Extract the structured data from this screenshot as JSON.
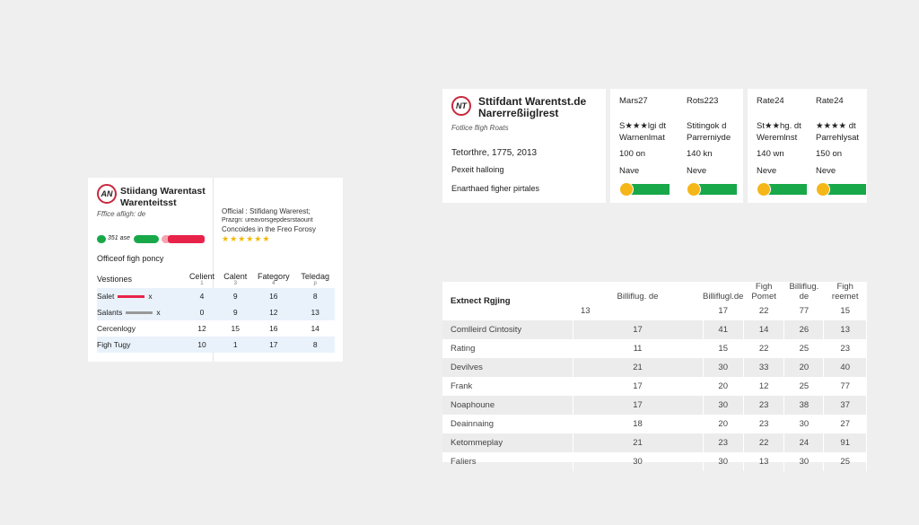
{
  "left_card": {
    "title1": "Stiidang Warentast",
    "title2": "Warenteitsst",
    "subtitle": "Fffice afligh: de",
    "pill_label": "351 ase",
    "section": "Officeof figh poncy",
    "right_title": "Official : Stifidang Warerest;",
    "right_line2": "Prazgn: ureavorsgepdesrstaount",
    "right_line3": "Concoides in the Freo Forosy",
    "stars": "★★★★★★",
    "table": {
      "headers": [
        "Vestiones",
        "Celient",
        "Calent",
        "Fategory",
        "Teledag"
      ],
      "subs": [
        "",
        "1",
        "3",
        "4",
        "p"
      ],
      "rows": [
        [
          "Salet",
          "4",
          "9",
          "16",
          "8"
        ],
        [
          "Salants",
          "0",
          "9",
          "12",
          "13"
        ],
        [
          "Cercenlogy",
          "12",
          "15",
          "16",
          "14"
        ],
        [
          "Figh Tugy",
          "10",
          "1",
          "17",
          "8"
        ]
      ]
    },
    "colors": {
      "green": "#18a84a",
      "red": "#e8234a",
      "pink": "#f4a4b0"
    }
  },
  "top_card": {
    "logo": "NT",
    "title1": "Sttifdant Warentst.de",
    "title2": "Narerreßiiglrest",
    "subtitle": "Fotlice fligh Roats",
    "line1": "Tetorthre, 1775, 2013",
    "line2": "Pexeit halloing",
    "line3": "Enarthaed figher pirtales"
  },
  "rating_cards": [
    {
      "head": "Mars27",
      "rating": "S★★★lgi dt",
      "sub": "Warnenlmat",
      "dist": "100 on",
      "status": "Nave",
      "progress": 0.15
    },
    {
      "head": "Rots223",
      "rating": "Stitingok d",
      "sub": "Parrerniyde",
      "dist": "140 kn",
      "status": "Neve",
      "progress": 0.15
    },
    {
      "head": "Rate24",
      "rating": "St★★hg. dt",
      "sub": "Weremlnst",
      "dist": "140 wn",
      "status": "Neve",
      "progress": 0.15
    },
    {
      "head": "Rate24",
      "rating": "★★★★ dt",
      "sub": "Parrehlysat",
      "dist": "150 on",
      "status": "Neve",
      "progress": 0.15
    }
  ],
  "main_table": {
    "title": "Extnect Rgjing",
    "headers": [
      "Billiflug. de",
      "Billiflugl.de",
      "Figh Pomet",
      "Billiflug. de",
      "Figh reemet"
    ],
    "first": [
      "13",
      "17",
      "22",
      "77",
      "15"
    ],
    "rows": [
      [
        "Comlleird Cintosity",
        "17",
        "41",
        "14",
        "26",
        "13"
      ],
      [
        "Rating",
        "11",
        "15",
        "22",
        "25",
        "23"
      ],
      [
        "Devilves",
        "21",
        "30",
        "33",
        "20",
        "40"
      ],
      [
        "Frank",
        "17",
        "20",
        "12",
        "25",
        "77"
      ],
      [
        "Noaphoune",
        "17",
        "30",
        "23",
        "38",
        "37"
      ],
      [
        "Deainnaing",
        "18",
        "20",
        "23",
        "30",
        "27"
      ],
      [
        "Ketommeplay",
        "21",
        "23",
        "22",
        "24",
        "91"
      ],
      [
        "Faliers",
        "30",
        "30",
        "13",
        "30",
        "25"
      ]
    ]
  }
}
